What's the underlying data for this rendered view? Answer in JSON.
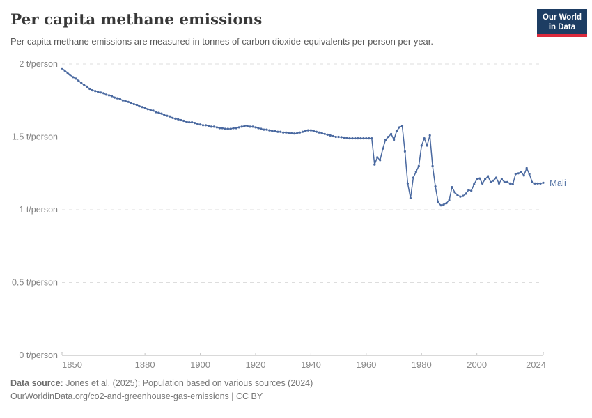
{
  "header": {
    "title": "Per capita methane emissions",
    "subtitle": "Per capita methane emissions are measured in tonnes of carbon dioxide-equivalents per person per year.",
    "logo_line1": "Our World",
    "logo_line2": "in Data",
    "logo_bg_color": "#1d3d63",
    "logo_accent_color": "#dc2a3c"
  },
  "chart_data": {
    "type": "line",
    "title": "Per capita methane emissions",
    "unit": "t/person",
    "xlim": [
      1850,
      2024
    ],
    "ylim": [
      0,
      2
    ],
    "grid": true,
    "legend_position": "end-of-line",
    "x_ticks": [
      1850,
      1880,
      1900,
      1920,
      1940,
      1960,
      1980,
      2000,
      2024
    ],
    "y_ticks": [
      {
        "value": 0,
        "label": "0 t/person"
      },
      {
        "value": 0.5,
        "label": "0.5 t/person"
      },
      {
        "value": 1,
        "label": "1 t/person"
      },
      {
        "value": 1.5,
        "label": "1.5 t/person"
      },
      {
        "value": 2,
        "label": "2 t/person"
      }
    ],
    "series": [
      {
        "name": "Mali",
        "color": "#4a69a0",
        "end_label_color": "#5b79a8",
        "points": [
          [
            1850,
            1.97
          ],
          [
            1851,
            1.955
          ],
          [
            1852,
            1.94
          ],
          [
            1853,
            1.925
          ],
          [
            1854,
            1.91
          ],
          [
            1855,
            1.9
          ],
          [
            1856,
            1.885
          ],
          [
            1857,
            1.87
          ],
          [
            1858,
            1.855
          ],
          [
            1859,
            1.845
          ],
          [
            1860,
            1.83
          ],
          [
            1861,
            1.82
          ],
          [
            1862,
            1.815
          ],
          [
            1863,
            1.81
          ],
          [
            1864,
            1.805
          ],
          [
            1865,
            1.8
          ],
          [
            1866,
            1.79
          ],
          [
            1867,
            1.785
          ],
          [
            1868,
            1.78
          ],
          [
            1869,
            1.77
          ],
          [
            1870,
            1.765
          ],
          [
            1871,
            1.76
          ],
          [
            1872,
            1.75
          ],
          [
            1873,
            1.745
          ],
          [
            1874,
            1.74
          ],
          [
            1875,
            1.73
          ],
          [
            1876,
            1.725
          ],
          [
            1877,
            1.72
          ],
          [
            1878,
            1.71
          ],
          [
            1879,
            1.705
          ],
          [
            1880,
            1.7
          ],
          [
            1881,
            1.69
          ],
          [
            1882,
            1.685
          ],
          [
            1883,
            1.68
          ],
          [
            1884,
            1.67
          ],
          [
            1885,
            1.665
          ],
          [
            1886,
            1.66
          ],
          [
            1887,
            1.65
          ],
          [
            1888,
            1.645
          ],
          [
            1889,
            1.64
          ],
          [
            1890,
            1.63
          ],
          [
            1891,
            1.625
          ],
          [
            1892,
            1.62
          ],
          [
            1893,
            1.615
          ],
          [
            1894,
            1.61
          ],
          [
            1895,
            1.605
          ],
          [
            1896,
            1.6
          ],
          [
            1897,
            1.6
          ],
          [
            1898,
            1.595
          ],
          [
            1899,
            1.59
          ],
          [
            1900,
            1.585
          ],
          [
            1901,
            1.58
          ],
          [
            1902,
            1.58
          ],
          [
            1903,
            1.575
          ],
          [
            1904,
            1.57
          ],
          [
            1905,
            1.57
          ],
          [
            1906,
            1.565
          ],
          [
            1907,
            1.56
          ],
          [
            1908,
            1.56
          ],
          [
            1909,
            1.555
          ],
          [
            1910,
            1.555
          ],
          [
            1911,
            1.555
          ],
          [
            1912,
            1.56
          ],
          [
            1913,
            1.56
          ],
          [
            1914,
            1.565
          ],
          [
            1915,
            1.57
          ],
          [
            1916,
            1.575
          ],
          [
            1917,
            1.575
          ],
          [
            1918,
            1.57
          ],
          [
            1919,
            1.57
          ],
          [
            1920,
            1.565
          ],
          [
            1921,
            1.56
          ],
          [
            1922,
            1.555
          ],
          [
            1923,
            1.55
          ],
          [
            1924,
            1.55
          ],
          [
            1925,
            1.545
          ],
          [
            1926,
            1.54
          ],
          [
            1927,
            1.54
          ],
          [
            1928,
            1.535
          ],
          [
            1929,
            1.535
          ],
          [
            1930,
            1.53
          ],
          [
            1931,
            1.53
          ],
          [
            1932,
            1.525
          ],
          [
            1933,
            1.525
          ],
          [
            1934,
            1.523
          ],
          [
            1935,
            1.525
          ],
          [
            1936,
            1.53
          ],
          [
            1937,
            1.535
          ],
          [
            1938,
            1.54
          ],
          [
            1939,
            1.545
          ],
          [
            1940,
            1.545
          ],
          [
            1941,
            1.54
          ],
          [
            1942,
            1.535
          ],
          [
            1943,
            1.53
          ],
          [
            1944,
            1.525
          ],
          [
            1945,
            1.52
          ],
          [
            1946,
            1.515
          ],
          [
            1947,
            1.51
          ],
          [
            1948,
            1.505
          ],
          [
            1949,
            1.5
          ],
          [
            1950,
            1.5
          ],
          [
            1951,
            1.498
          ],
          [
            1952,
            1.495
          ],
          [
            1953,
            1.492
          ],
          [
            1954,
            1.49
          ],
          [
            1955,
            1.49
          ],
          [
            1956,
            1.49
          ],
          [
            1957,
            1.49
          ],
          [
            1958,
            1.49
          ],
          [
            1959,
            1.49
          ],
          [
            1960,
            1.49
          ],
          [
            1961,
            1.49
          ],
          [
            1962,
            1.49
          ],
          [
            1963,
            1.31
          ],
          [
            1964,
            1.36
          ],
          [
            1965,
            1.34
          ],
          [
            1966,
            1.42
          ],
          [
            1967,
            1.48
          ],
          [
            1968,
            1.5
          ],
          [
            1969,
            1.52
          ],
          [
            1970,
            1.48
          ],
          [
            1971,
            1.54
          ],
          [
            1972,
            1.565
          ],
          [
            1973,
            1.575
          ],
          [
            1974,
            1.4
          ],
          [
            1975,
            1.18
          ],
          [
            1976,
            1.08
          ],
          [
            1977,
            1.22
          ],
          [
            1978,
            1.26
          ],
          [
            1979,
            1.3
          ],
          [
            1980,
            1.44
          ],
          [
            1981,
            1.49
          ],
          [
            1982,
            1.44
          ],
          [
            1983,
            1.51
          ],
          [
            1984,
            1.3
          ],
          [
            1985,
            1.16
          ],
          [
            1986,
            1.05
          ],
          [
            1987,
            1.03
          ],
          [
            1988,
            1.035
          ],
          [
            1989,
            1.045
          ],
          [
            1990,
            1.065
          ],
          [
            1991,
            1.155
          ],
          [
            1992,
            1.12
          ],
          [
            1993,
            1.1
          ],
          [
            1994,
            1.09
          ],
          [
            1995,
            1.095
          ],
          [
            1996,
            1.11
          ],
          [
            1997,
            1.135
          ],
          [
            1998,
            1.13
          ],
          [
            1999,
            1.175
          ],
          [
            2000,
            1.21
          ],
          [
            2001,
            1.215
          ],
          [
            2002,
            1.18
          ],
          [
            2003,
            1.21
          ],
          [
            2004,
            1.23
          ],
          [
            2005,
            1.19
          ],
          [
            2006,
            1.2
          ],
          [
            2007,
            1.22
          ],
          [
            2008,
            1.18
          ],
          [
            2009,
            1.21
          ],
          [
            2010,
            1.19
          ],
          [
            2011,
            1.19
          ],
          [
            2012,
            1.18
          ],
          [
            2013,
            1.175
          ],
          [
            2014,
            1.245
          ],
          [
            2015,
            1.25
          ],
          [
            2016,
            1.26
          ],
          [
            2017,
            1.235
          ],
          [
            2018,
            1.285
          ],
          [
            2019,
            1.245
          ],
          [
            2020,
            1.19
          ],
          [
            2021,
            1.18
          ],
          [
            2022,
            1.18
          ],
          [
            2023,
            1.18
          ],
          [
            2024,
            1.185
          ]
        ]
      }
    ]
  },
  "footer": {
    "source_label": "Data source:",
    "source_text": "Jones et al. (2025); Population based on various sources (2024)",
    "link_text": "OurWorldinData.org/co2-and-greenhouse-gas-emissions",
    "separator": " | ",
    "license": "CC BY"
  }
}
